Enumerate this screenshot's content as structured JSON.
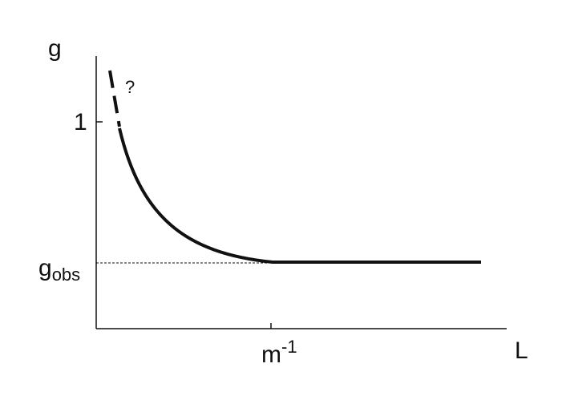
{
  "axes": {
    "y_label": "g",
    "x_label": "L",
    "y_tick": "1",
    "g_obs": {
      "base": "g",
      "sub": "obs"
    },
    "x_tick": {
      "base": "m",
      "sup": "-1"
    }
  },
  "annotation": "?"
}
